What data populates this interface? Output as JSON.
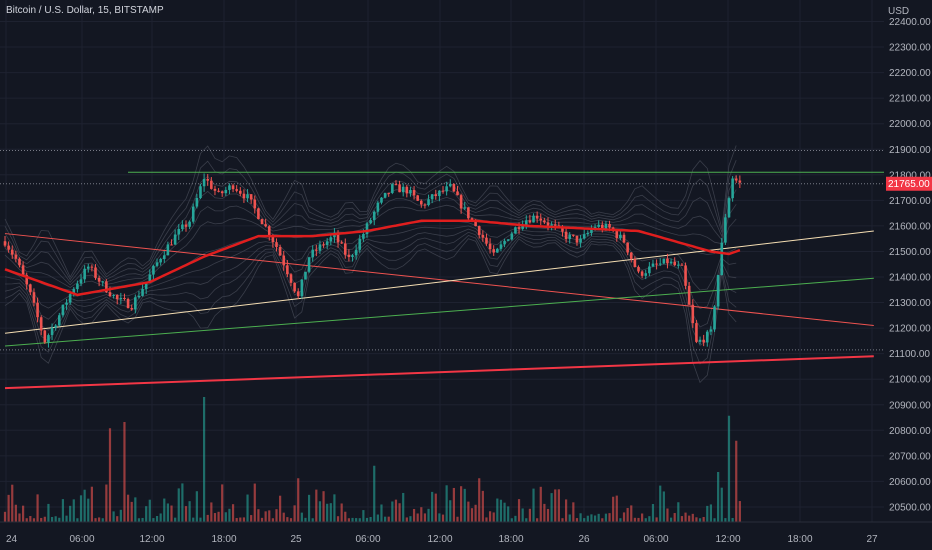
{
  "header": {
    "symbol": "Bitcoin / U.S. Dollar",
    "interval": "15",
    "exchange": "BITSTAMP"
  },
  "currency": "USD",
  "last_price": "21765.00",
  "colors": {
    "background": "#131722",
    "grid": "#1e2230",
    "up": "#26a69a",
    "down": "#ef5350",
    "ema": "#e01e1e",
    "ribbon": "#3a3e4a",
    "upper_trendline": "#ef5350",
    "lower_trendline": "#f5deb3",
    "green_trendline": "#4caf50",
    "bottom_trendline": "#f23645",
    "resistance": "#4caf50",
    "tag_bg": "#f23645"
  },
  "chart_data": {
    "type": "candlestick",
    "ylim": [
      20450,
      22400
    ],
    "y_ticks": [
      22400,
      22300,
      22200,
      22100,
      22000,
      21900,
      21800,
      21700,
      21600,
      21500,
      21400,
      21300,
      21200,
      21100,
      21000,
      20900,
      20800,
      20700,
      20600,
      20500
    ],
    "x_ticks": [
      "24",
      "06:00",
      "12:00",
      "18:00",
      "25",
      "06:00",
      "12:00",
      "18:00",
      "26",
      "06:00",
      "12:00",
      "18:00",
      "27"
    ],
    "price_waypoints": [
      [
        0,
        21540
      ],
      [
        3,
        21470
      ],
      [
        7,
        21330
      ],
      [
        11,
        21150
      ],
      [
        15,
        21250
      ],
      [
        19,
        21360
      ],
      [
        23,
        21440
      ],
      [
        27,
        21370
      ],
      [
        31,
        21310
      ],
      [
        35,
        21290
      ],
      [
        39,
        21380
      ],
      [
        43,
        21480
      ],
      [
        47,
        21560
      ],
      [
        51,
        21620
      ],
      [
        55,
        21790
      ],
      [
        59,
        21720
      ],
      [
        63,
        21760
      ],
      [
        67,
        21710
      ],
      [
        71,
        21620
      ],
      [
        75,
        21520
      ],
      [
        79,
        21390
      ],
      [
        81,
        21320
      ],
      [
        84,
        21480
      ],
      [
        88,
        21530
      ],
      [
        91,
        21560
      ],
      [
        95,
        21470
      ],
      [
        99,
        21570
      ],
      [
        103,
        21680
      ],
      [
        107,
        21750
      ],
      [
        111,
        21740
      ],
      [
        115,
        21680
      ],
      [
        119,
        21720
      ],
      [
        123,
        21750
      ],
      [
        127,
        21660
      ],
      [
        131,
        21580
      ],
      [
        135,
        21480
      ],
      [
        139,
        21560
      ],
      [
        143,
        21620
      ],
      [
        147,
        21640
      ],
      [
        151,
        21600
      ],
      [
        155,
        21560
      ],
      [
        159,
        21540
      ],
      [
        163,
        21600
      ],
      [
        167,
        21590
      ],
      [
        171,
        21540
      ],
      [
        175,
        21410
      ],
      [
        179,
        21440
      ],
      [
        183,
        21460
      ],
      [
        187,
        21430
      ],
      [
        191,
        21140
      ],
      [
        195,
        21180
      ],
      [
        199,
        21640
      ],
      [
        201,
        21790
      ],
      [
        203,
        21765
      ]
    ],
    "ema_waypoints": [
      [
        0,
        21430
      ],
      [
        20,
        21330
      ],
      [
        40,
        21380
      ],
      [
        55,
        21480
      ],
      [
        70,
        21560
      ],
      [
        85,
        21560
      ],
      [
        100,
        21580
      ],
      [
        115,
        21620
      ],
      [
        130,
        21620
      ],
      [
        145,
        21600
      ],
      [
        160,
        21590
      ],
      [
        175,
        21580
      ],
      [
        185,
        21540
      ],
      [
        195,
        21500
      ],
      [
        200,
        21490
      ],
      [
        203,
        21505
      ]
    ],
    "resistance": 21810,
    "dotted_levels": [
      21895,
      21765,
      21115
    ],
    "trendlines": [
      {
        "name": "upper_trendline",
        "from": [
          0,
          21570
        ],
        "to": [
          240,
          21210
        ]
      },
      {
        "name": "lower_trendline",
        "from": [
          0,
          21180
        ],
        "to": [
          240,
          21580
        ]
      },
      {
        "name": "green_trendline",
        "from": [
          0,
          21130
        ],
        "to": [
          240,
          21395
        ]
      },
      {
        "name": "bottom_trendline",
        "from": [
          0,
          20965
        ],
        "to": [
          240,
          21090
        ]
      }
    ],
    "volume_spikes": [
      {
        "bar": 29,
        "vol": 0.75
      },
      {
        "bar": 33,
        "vol": 0.8
      },
      {
        "bar": 55,
        "vol": 1.0
      },
      {
        "bar": 81,
        "vol": 0.35
      },
      {
        "bar": 102,
        "vol": 0.45
      },
      {
        "bar": 131,
        "vol": 0.35
      },
      {
        "bar": 197,
        "vol": 0.4
      },
      {
        "bar": 200,
        "vol": 0.85
      },
      {
        "bar": 202,
        "vol": 0.65
      }
    ]
  }
}
